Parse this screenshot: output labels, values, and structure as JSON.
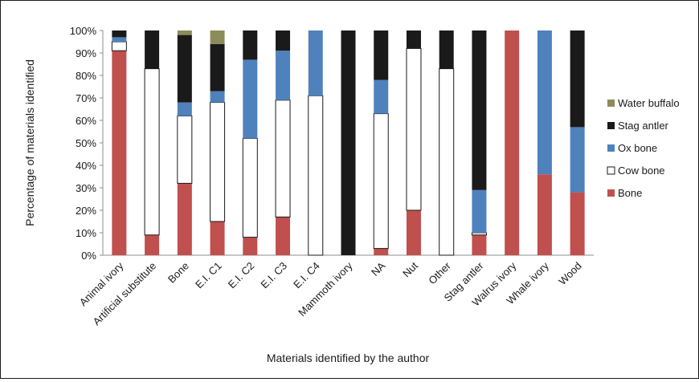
{
  "chart_data": {
    "type": "bar",
    "stacked": true,
    "percent_stacked": true,
    "title": "",
    "xlabel": "Materials identified by the author",
    "ylabel": "Percentage of materials identified",
    "ylim": [
      0,
      100
    ],
    "ytick_labels": [
      "0%",
      "10%",
      "20%",
      "30%",
      "40%",
      "50%",
      "60%",
      "70%",
      "80%",
      "90%",
      "100%"
    ],
    "grid": false,
    "legend_position": "right",
    "categories": [
      "Animal ivory",
      "Artificial substitute",
      "Bone",
      "E.I. C1",
      "E.I. C2",
      "E.I. C3",
      "E.I. C4",
      "Mammoth ivory",
      "NA",
      "Nut",
      "Other",
      "Stag antler",
      "Walrus ivory",
      "Whale ivory",
      "Wood"
    ],
    "series": [
      {
        "name": "Bone",
        "color": "#c0504d",
        "values": [
          91,
          9,
          32,
          15,
          8,
          17,
          0,
          0,
          3,
          20,
          0,
          9,
          100,
          36,
          28
        ]
      },
      {
        "name": "Cow bone",
        "color": "#ffffff",
        "values": [
          4,
          74,
          30,
          53,
          44,
          52,
          71,
          0,
          60,
          72,
          83,
          1,
          0,
          0,
          0
        ]
      },
      {
        "name": "Ox bone",
        "color": "#4f81bd",
        "values": [
          2,
          0,
          6,
          5,
          35,
          22,
          29,
          0,
          15,
          0,
          0,
          19,
          0,
          64,
          29
        ]
      },
      {
        "name": "Stag antler",
        "color": "#1a1a1a",
        "values": [
          3,
          17,
          30,
          21,
          13,
          9,
          0,
          100,
          22,
          8,
          17,
          71,
          0,
          0,
          43
        ]
      },
      {
        "name": "Water buffalo",
        "color": "#8c8c5a",
        "values": [
          0,
          0,
          2,
          6,
          0,
          0,
          0,
          0,
          0,
          0,
          0,
          0,
          0,
          0,
          0
        ]
      }
    ],
    "legend_order": [
      "Water buffalo",
      "Stag antler",
      "Ox bone",
      "Cow bone",
      "Bone"
    ]
  }
}
